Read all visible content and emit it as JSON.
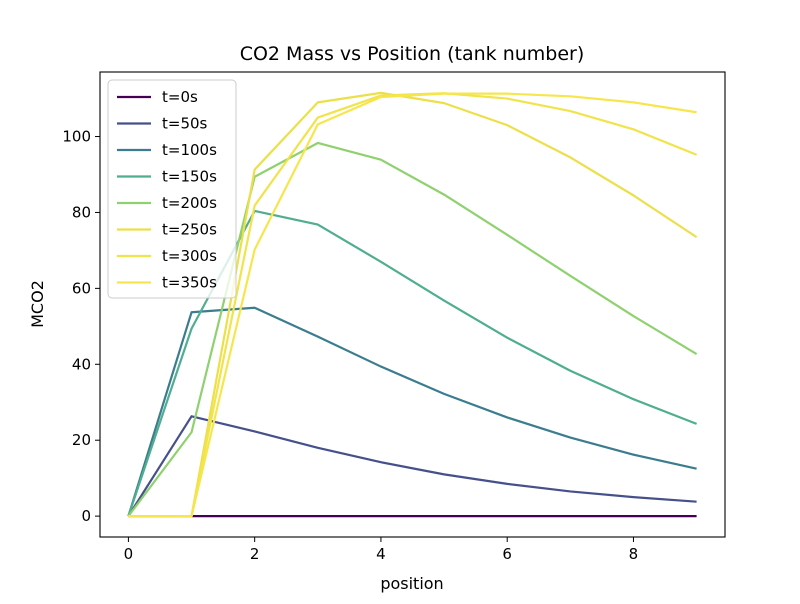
{
  "chart_data": {
    "type": "line",
    "title": "CO2 Mass vs Position (tank number)",
    "xlabel": "position",
    "ylabel": "MCO2",
    "xlim": [
      -0.45,
      9.45
    ],
    "ylim": [
      -5.5,
      117.0
    ],
    "xticks": [
      0,
      2,
      4,
      6,
      8
    ],
    "xtick_labels": [
      "0",
      "2",
      "4",
      "6",
      "8"
    ],
    "yticks": [
      0,
      20,
      40,
      60,
      80,
      100
    ],
    "ytick_labels": [
      "0",
      "20",
      "40",
      "60",
      "80",
      "100"
    ],
    "grid": false,
    "legend_position": "top-left",
    "x": [
      0,
      1,
      2,
      3,
      4,
      5,
      6,
      7,
      8,
      9
    ],
    "series": [
      {
        "name": "t=0s",
        "color": "#440154",
        "values": [
          0,
          0,
          0,
          0,
          0,
          0,
          0,
          0,
          0,
          0
        ]
      },
      {
        "name": "t=50s",
        "color": "#46508a",
        "values": [
          0,
          26.3,
          22.3,
          18.0,
          14.2,
          11.0,
          8.5,
          6.5,
          5.0,
          3.8
        ]
      },
      {
        "name": "t=100s",
        "color": "#3b7d8e",
        "values": [
          0,
          53.7,
          54.9,
          47.3,
          39.4,
          32.2,
          26.0,
          20.7,
          16.2,
          12.5
        ]
      },
      {
        "name": "t=150s",
        "color": "#4fae90",
        "values": [
          0,
          49.4,
          80.4,
          76.8,
          67.0,
          56.8,
          47.0,
          38.3,
          30.8,
          24.3
        ]
      },
      {
        "name": "t=200s",
        "color": "#8fd16f",
        "values": [
          0,
          22.1,
          89.4,
          98.3,
          93.9,
          84.7,
          74.1,
          63.3,
          52.7,
          42.7
        ]
      },
      {
        "name": "t=250s",
        "color": "#ebe04a",
        "values": [
          0,
          0,
          91.3,
          109.0,
          111.5,
          108.8,
          103.0,
          94.5,
          84.5,
          73.5
        ]
      },
      {
        "name": "t=300s",
        "color": "#f1e34a",
        "values": [
          0,
          0,
          81.8,
          105.0,
          110.8,
          111.4,
          110.0,
          106.7,
          101.9,
          95.2
        ]
      },
      {
        "name": "t=350s",
        "color": "#f6e64c",
        "values": [
          0,
          0,
          70.2,
          103.2,
          110.4,
          111.3,
          111.3,
          110.6,
          109.0,
          106.4
        ]
      }
    ]
  }
}
